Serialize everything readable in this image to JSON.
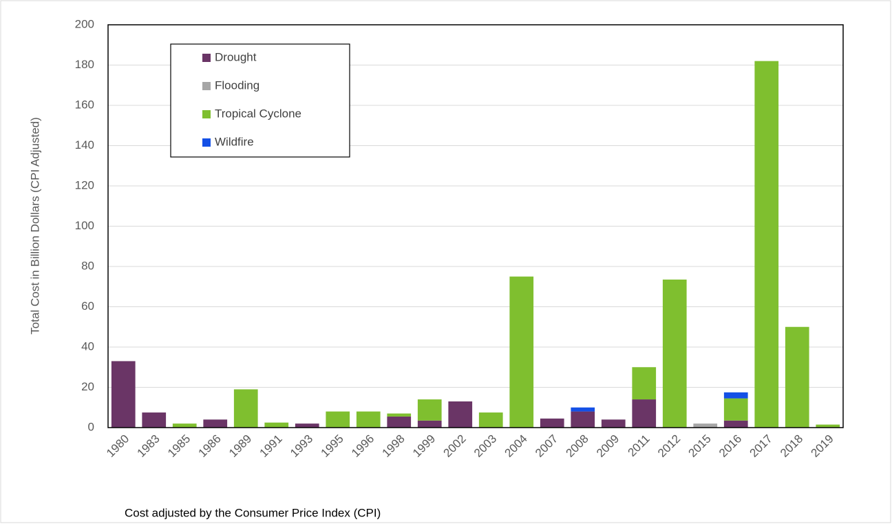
{
  "chart_data": {
    "type": "bar",
    "stacked": true,
    "ylabel": "Total Cost in  Billion  Dollars  (CPI Adjusted)",
    "note": "Cost adjusted by the Consumer Price Index (CPI)",
    "categories": [
      "1980",
      "1983",
      "1985",
      "1986",
      "1989",
      "1991",
      "1993",
      "1995",
      "1996",
      "1998",
      "1999",
      "2002",
      "2003",
      "2004",
      "2007",
      "2008",
      "2009",
      "2011",
      "2012",
      "2015",
      "2016",
      "2017",
      "2018",
      "2019"
    ],
    "series": [
      {
        "name": "Drought",
        "color": "#6a3566",
        "values": [
          33,
          7.5,
          null,
          4,
          null,
          null,
          2,
          null,
          null,
          5.5,
          3.5,
          13,
          null,
          null,
          4.5,
          8,
          4,
          14,
          null,
          null,
          3.5,
          null,
          null,
          null
        ]
      },
      {
        "name": "Flooding",
        "color": "#a6a6a6",
        "values": [
          null,
          null,
          null,
          null,
          null,
          null,
          null,
          null,
          null,
          null,
          null,
          null,
          null,
          null,
          null,
          null,
          null,
          null,
          null,
          2,
          null,
          null,
          null,
          null
        ]
      },
      {
        "name": "Tropical Cyclone",
        "color": "#7fbf2f",
        "values": [
          null,
          null,
          2,
          null,
          19,
          2.5,
          null,
          8,
          8,
          1.5,
          10.5,
          null,
          7.5,
          75,
          null,
          null,
          null,
          16,
          73.5,
          null,
          11,
          182,
          50,
          1.5
        ]
      },
      {
        "name": "Wildfire",
        "color": "#1450e6",
        "values": [
          null,
          null,
          null,
          null,
          null,
          null,
          null,
          null,
          null,
          null,
          null,
          null,
          null,
          null,
          null,
          2,
          null,
          null,
          null,
          null,
          3,
          null,
          null,
          null
        ]
      }
    ],
    "ylim": [
      0,
      200
    ],
    "yticks": [
      0,
      20,
      40,
      60,
      80,
      100,
      120,
      140,
      160,
      180,
      200
    ],
    "grid": true,
    "legend": "upper left"
  }
}
